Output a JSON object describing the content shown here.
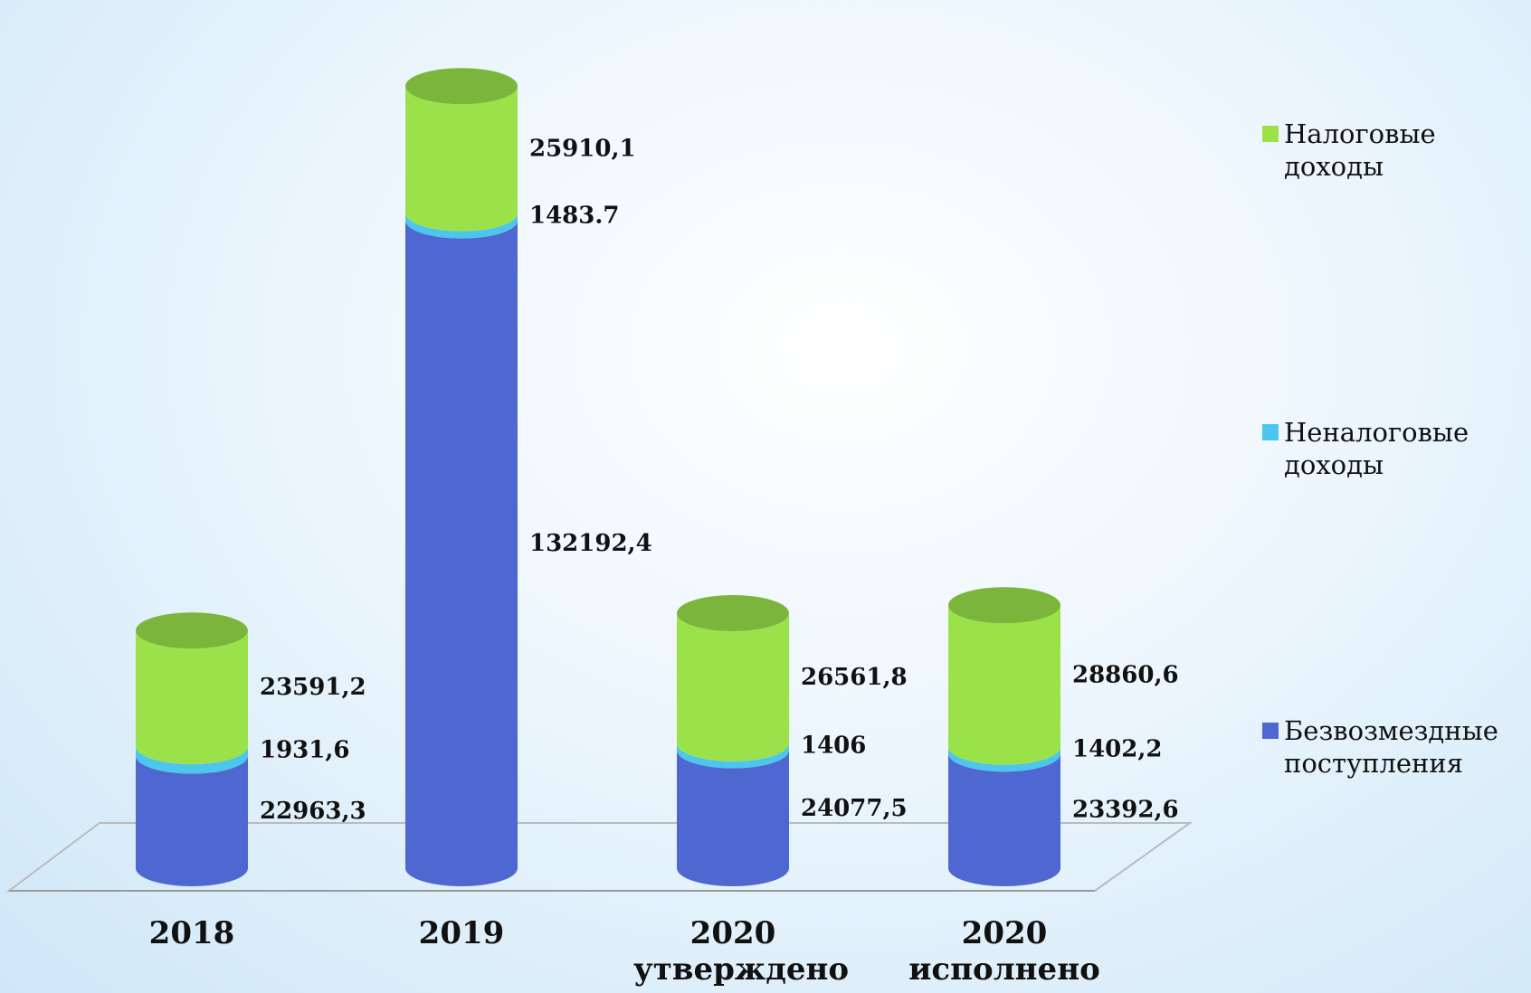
{
  "chart_data": {
    "type": "bar3d_stacked",
    "categories": [
      "2018",
      "2019",
      "2020 утверждено",
      "2020 исполнено"
    ],
    "series": [
      {
        "name": "Безвозмездные поступления",
        "color": "#4f67d0",
        "values": [
          22963.3,
          132192.4,
          24077.5,
          23392.6
        ],
        "value_labels": [
          "22963,3",
          "132192,4",
          "24077,5",
          "23392,6"
        ]
      },
      {
        "name": "Неналоговые доходы",
        "color": "#4cc6ec",
        "values": [
          1931.6,
          1483.7,
          1406,
          1402.2
        ],
        "value_labels": [
          "1931,6",
          "1483.7",
          "1406",
          "1402,2"
        ]
      },
      {
        "name": "Налоговые доходы",
        "color": "#9be24a",
        "values": [
          23591.2,
          25910.1,
          26561.8,
          28860.6
        ],
        "value_labels": [
          "23591,2",
          "25910,1",
          "26561,8",
          "28860,6"
        ]
      }
    ],
    "ylim": [
      0,
      160000
    ],
    "legend": "right"
  }
}
